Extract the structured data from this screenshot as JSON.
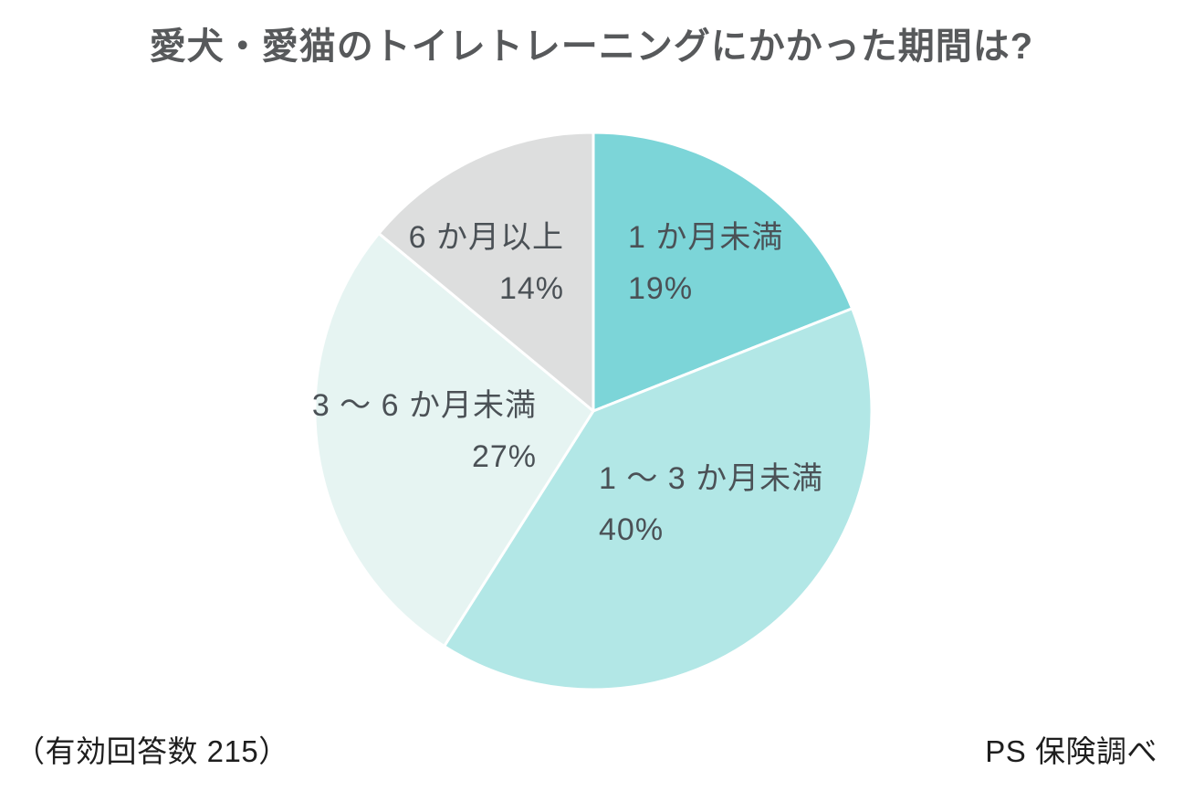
{
  "title": {
    "text": "愛犬・愛猫のトイレトレーニングにかかった期間は?"
  },
  "footer": {
    "sample_size": "（有効回答数 215）",
    "source": "PS 保険調べ"
  },
  "chart_data": {
    "type": "pie",
    "title": "愛犬・愛猫のトイレトレーニングにかかった期間は?",
    "categories": [
      "1 か月未満",
      "1 ～ 3 か月未満",
      "3 ～ 6 か月未満",
      "6 か月以上"
    ],
    "values": [
      19,
      40,
      27,
      14
    ],
    "unit": "%",
    "total_responses": 215,
    "start_position": "top",
    "direction": "clockwise",
    "legend_position": "none",
    "labels_inside": true,
    "colors": [
      "#7cd5d8",
      "#b2e7e6",
      "#e6f4f2",
      "#dddede"
    ],
    "separator_color": "#ffffff",
    "slice_labels": [
      {
        "label": "1 か月未満",
        "pct": "19%"
      },
      {
        "label": "1 ～ 3 か月未満",
        "pct": "40%"
      },
      {
        "label": "3 ～ 6 か月未満",
        "pct": "27%"
      },
      {
        "label": "6 か月以上",
        "pct": "14%"
      }
    ]
  }
}
